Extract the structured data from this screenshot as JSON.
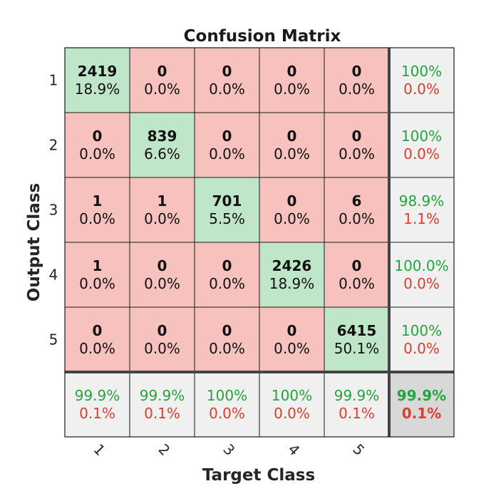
{
  "chart_data": {
    "type": "heatmap",
    "title": "Confusion Matrix",
    "xlabel": "Target Class",
    "ylabel": "Output Class",
    "row_labels": [
      "1",
      "2",
      "3",
      "4",
      "5"
    ],
    "col_labels": [
      "1",
      "2",
      "3",
      "4",
      "5"
    ],
    "counts": [
      [
        2419,
        0,
        0,
        0,
        0
      ],
      [
        0,
        839,
        0,
        0,
        0
      ],
      [
        1,
        1,
        701,
        0,
        6
      ],
      [
        1,
        0,
        0,
        2426,
        0
      ],
      [
        0,
        0,
        0,
        0,
        6415
      ]
    ],
    "cell_percents": [
      [
        "18.9%",
        "0.0%",
        "0.0%",
        "0.0%",
        "0.0%"
      ],
      [
        "0.0%",
        "6.6%",
        "0.0%",
        "0.0%",
        "0.0%"
      ],
      [
        "0.0%",
        "0.0%",
        "5.5%",
        "0.0%",
        "0.0%"
      ],
      [
        "0.0%",
        "0.0%",
        "0.0%",
        "18.9%",
        "0.0%"
      ],
      [
        "0.0%",
        "0.0%",
        "0.0%",
        "0.0%",
        "50.1%"
      ]
    ],
    "row_summary": [
      {
        "correct": "100%",
        "incorrect": "0.0%"
      },
      {
        "correct": "100%",
        "incorrect": "0.0%"
      },
      {
        "correct": "98.9%",
        "incorrect": "1.1%"
      },
      {
        "correct": "100.0%",
        "incorrect": "0.0%"
      },
      {
        "correct": "100%",
        "incorrect": "0.0%"
      }
    ],
    "col_summary": [
      {
        "correct": "99.9%",
        "incorrect": "0.1%"
      },
      {
        "correct": "99.9%",
        "incorrect": "0.1%"
      },
      {
        "correct": "100%",
        "incorrect": "0.0%"
      },
      {
        "correct": "100%",
        "incorrect": "0.0%"
      },
      {
        "correct": "99.9%",
        "incorrect": "0.1%"
      }
    ],
    "overall": {
      "correct": "99.9%",
      "incorrect": "0.1%"
    },
    "colors": {
      "correct_cell": "#bfe6c8",
      "incorrect_cell": "#f7c1bd",
      "summary_cell": "#f0f0f0",
      "overall_cell": "#d8d8d8",
      "correct_text": "#22a63c",
      "incorrect_text": "#e03c2c",
      "grid": "#1a1a1a",
      "separator": "#444444"
    }
  }
}
